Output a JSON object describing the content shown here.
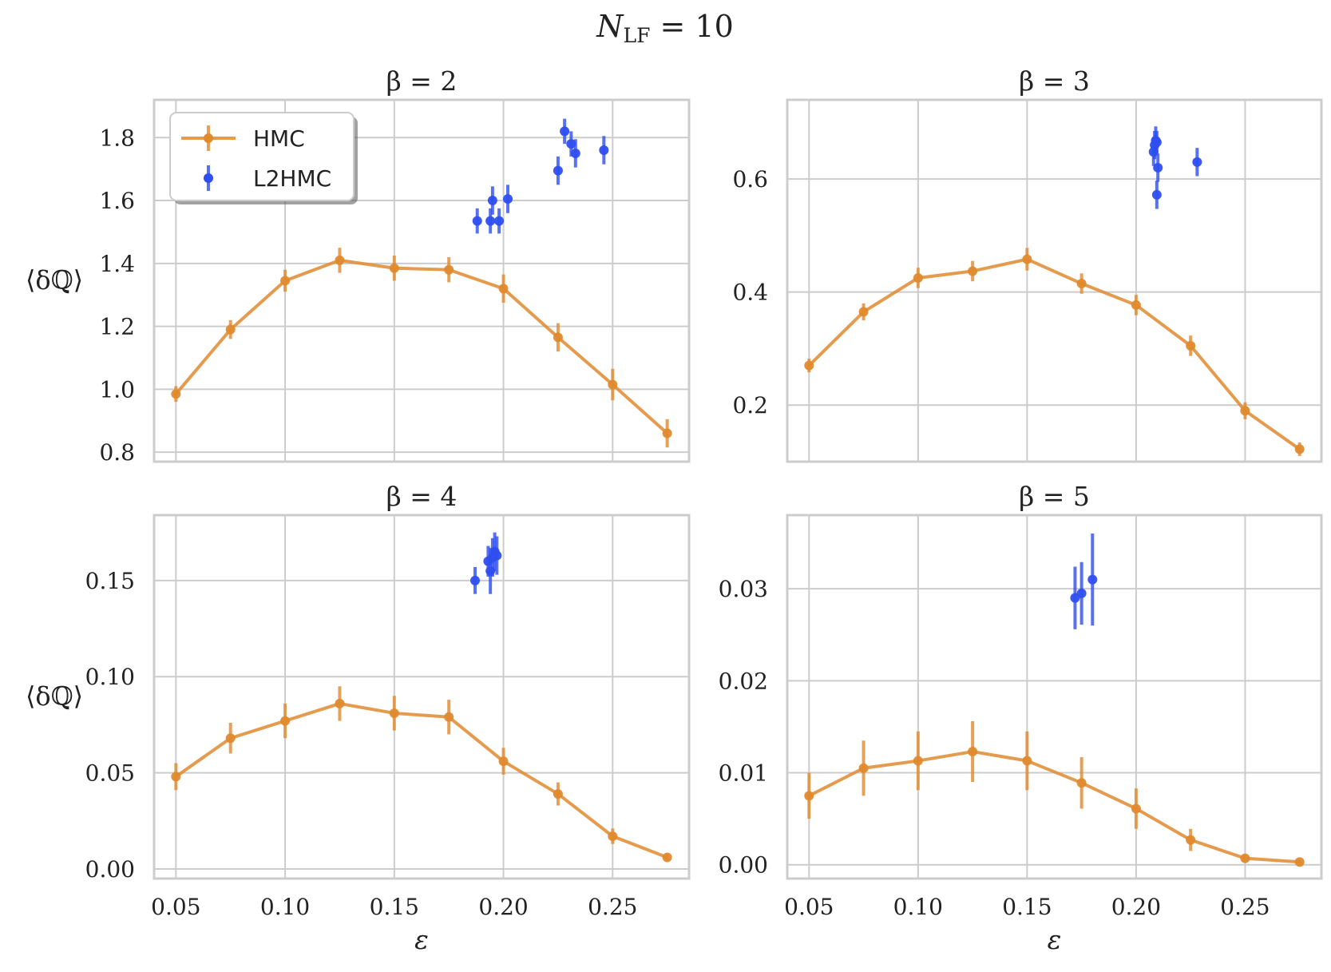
{
  "figure_title": "N_LF = 10",
  "chart_data": [
    {
      "type": "line",
      "title": "β = 2",
      "xlabel": "",
      "ylabel": "⟨δℚ⟩",
      "xlim": [
        0.04,
        0.285
      ],
      "ylim": [
        0.77,
        1.92
      ],
      "xticks": [
        "0.05",
        "0.10",
        "0.15",
        "0.20",
        "0.25"
      ],
      "yticks": [
        "0.8",
        "1.0",
        "1.2",
        "1.4",
        "1.6",
        "1.8"
      ],
      "grid": true,
      "legend": {
        "placement": "top-left",
        "entries": [
          "HMC",
          "L2HMC"
        ]
      },
      "series": [
        {
          "name": "HMC",
          "color": "#e08a2e",
          "style": "line-errorbar",
          "x": [
            0.05,
            0.075,
            0.1,
            0.125,
            0.15,
            0.175,
            0.2,
            0.225,
            0.25,
            0.275
          ],
          "y": [
            0.985,
            1.19,
            1.345,
            1.41,
            1.385,
            1.38,
            1.32,
            1.165,
            1.015,
            0.86
          ],
          "err": [
            0.025,
            0.03,
            0.035,
            0.04,
            0.04,
            0.04,
            0.045,
            0.045,
            0.05,
            0.045
          ]
        },
        {
          "name": "L2HMC",
          "color": "#2e4ef0",
          "style": "errorbar",
          "x": [
            0.188,
            0.194,
            0.195,
            0.198,
            0.202,
            0.225,
            0.228,
            0.231,
            0.233,
            0.246
          ],
          "y": [
            1.535,
            1.535,
            1.6,
            1.535,
            1.605,
            1.695,
            1.82,
            1.78,
            1.75,
            1.76
          ],
          "err": [
            0.04,
            0.04,
            0.045,
            0.04,
            0.045,
            0.045,
            0.04,
            0.04,
            0.045,
            0.045
          ]
        }
      ]
    },
    {
      "type": "line",
      "title": "β = 3",
      "xlabel": "",
      "ylabel": "",
      "xlim": [
        0.04,
        0.285
      ],
      "ylim": [
        0.1,
        0.74
      ],
      "xticks": [
        "0.05",
        "0.10",
        "0.15",
        "0.20",
        "0.25"
      ],
      "yticks": [
        "0.2",
        "0.4",
        "0.6"
      ],
      "grid": true,
      "series": [
        {
          "name": "HMC",
          "color": "#e08a2e",
          "style": "line-errorbar",
          "x": [
            0.05,
            0.075,
            0.1,
            0.125,
            0.15,
            0.175,
            0.2,
            0.225,
            0.25,
            0.275
          ],
          "y": [
            0.27,
            0.365,
            0.425,
            0.437,
            0.458,
            0.415,
            0.377,
            0.305,
            0.19,
            0.122
          ],
          "err": [
            0.012,
            0.015,
            0.018,
            0.018,
            0.02,
            0.018,
            0.018,
            0.018,
            0.015,
            0.012
          ]
        },
        {
          "name": "L2HMC",
          "color": "#2e4ef0",
          "style": "errorbar",
          "x": [
            0.208,
            0.2085,
            0.209,
            0.2095,
            0.21,
            0.2095,
            0.228
          ],
          "y": [
            0.648,
            0.66,
            0.668,
            0.572,
            0.62,
            0.665,
            0.63
          ],
          "err": [
            0.025,
            0.025,
            0.025,
            0.025,
            0.025,
            0.02,
            0.025
          ]
        }
      ]
    },
    {
      "type": "line",
      "title": "β = 4",
      "xlabel": "ε",
      "ylabel": "⟨δℚ⟩",
      "xlim": [
        0.04,
        0.285
      ],
      "ylim": [
        -0.005,
        0.184
      ],
      "xticks": [
        "0.05",
        "0.10",
        "0.15",
        "0.20",
        "0.25"
      ],
      "yticks": [
        "0.00",
        "0.05",
        "0.10",
        "0.15"
      ],
      "grid": true,
      "series": [
        {
          "name": "HMC",
          "color": "#e08a2e",
          "style": "line-errorbar",
          "x": [
            0.05,
            0.075,
            0.1,
            0.125,
            0.15,
            0.175,
            0.2,
            0.225,
            0.25,
            0.275
          ],
          "y": [
            0.048,
            0.068,
            0.077,
            0.086,
            0.081,
            0.079,
            0.056,
            0.039,
            0.017,
            0.006
          ],
          "err": [
            0.007,
            0.008,
            0.009,
            0.009,
            0.009,
            0.009,
            0.007,
            0.006,
            0.004,
            0.002
          ]
        },
        {
          "name": "L2HMC",
          "color": "#2e4ef0",
          "style": "errorbar",
          "x": [
            0.187,
            0.193,
            0.194,
            0.195,
            0.196,
            0.197
          ],
          "y": [
            0.15,
            0.16,
            0.155,
            0.162,
            0.165,
            0.163
          ],
          "err": [
            0.007,
            0.008,
            0.012,
            0.01,
            0.01,
            0.01
          ]
        }
      ]
    },
    {
      "type": "line",
      "title": "β = 5",
      "xlabel": "ε",
      "ylabel": "",
      "xlim": [
        0.04,
        0.285
      ],
      "ylim": [
        -0.0015,
        0.038
      ],
      "xticks": [
        "0.05",
        "0.10",
        "0.15",
        "0.20",
        "0.25"
      ],
      "yticks": [
        "0.00",
        "0.01",
        "0.02",
        "0.03"
      ],
      "grid": true,
      "series": [
        {
          "name": "HMC",
          "color": "#e08a2e",
          "style": "line-errorbar",
          "x": [
            0.05,
            0.075,
            0.1,
            0.125,
            0.15,
            0.175,
            0.2,
            0.225,
            0.25,
            0.275
          ],
          "y": [
            0.0075,
            0.0105,
            0.0113,
            0.0123,
            0.0113,
            0.0089,
            0.0061,
            0.0027,
            0.0007,
            0.0003
          ],
          "err": [
            0.0025,
            0.003,
            0.0032,
            0.0033,
            0.0032,
            0.0028,
            0.0022,
            0.0012,
            0.0004,
            0.0002
          ]
        },
        {
          "name": "L2HMC",
          "color": "#2e4ef0",
          "style": "errorbar",
          "x": [
            0.172,
            0.175,
            0.18
          ],
          "y": [
            0.029,
            0.0295,
            0.031
          ],
          "err": [
            0.0034,
            0.0034,
            0.005
          ]
        }
      ]
    }
  ]
}
